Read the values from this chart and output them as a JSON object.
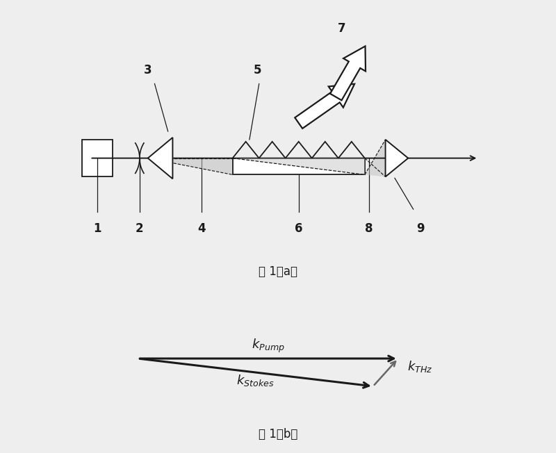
{
  "bg_color": "#eeeeee",
  "line_color": "#1a1a1a",
  "caption_a": "图 1（a）",
  "caption_b": "图 1（b）",
  "arrow_label_pump": "$\\mathbf{k}_{\\mathit{Pump}}$",
  "arrow_label_stokes": "$\\mathbf{k}_{\\mathit{Stokes}}$",
  "arrow_label_thz": "$\\mathbf{k}_{\\mathit{THz}}$"
}
